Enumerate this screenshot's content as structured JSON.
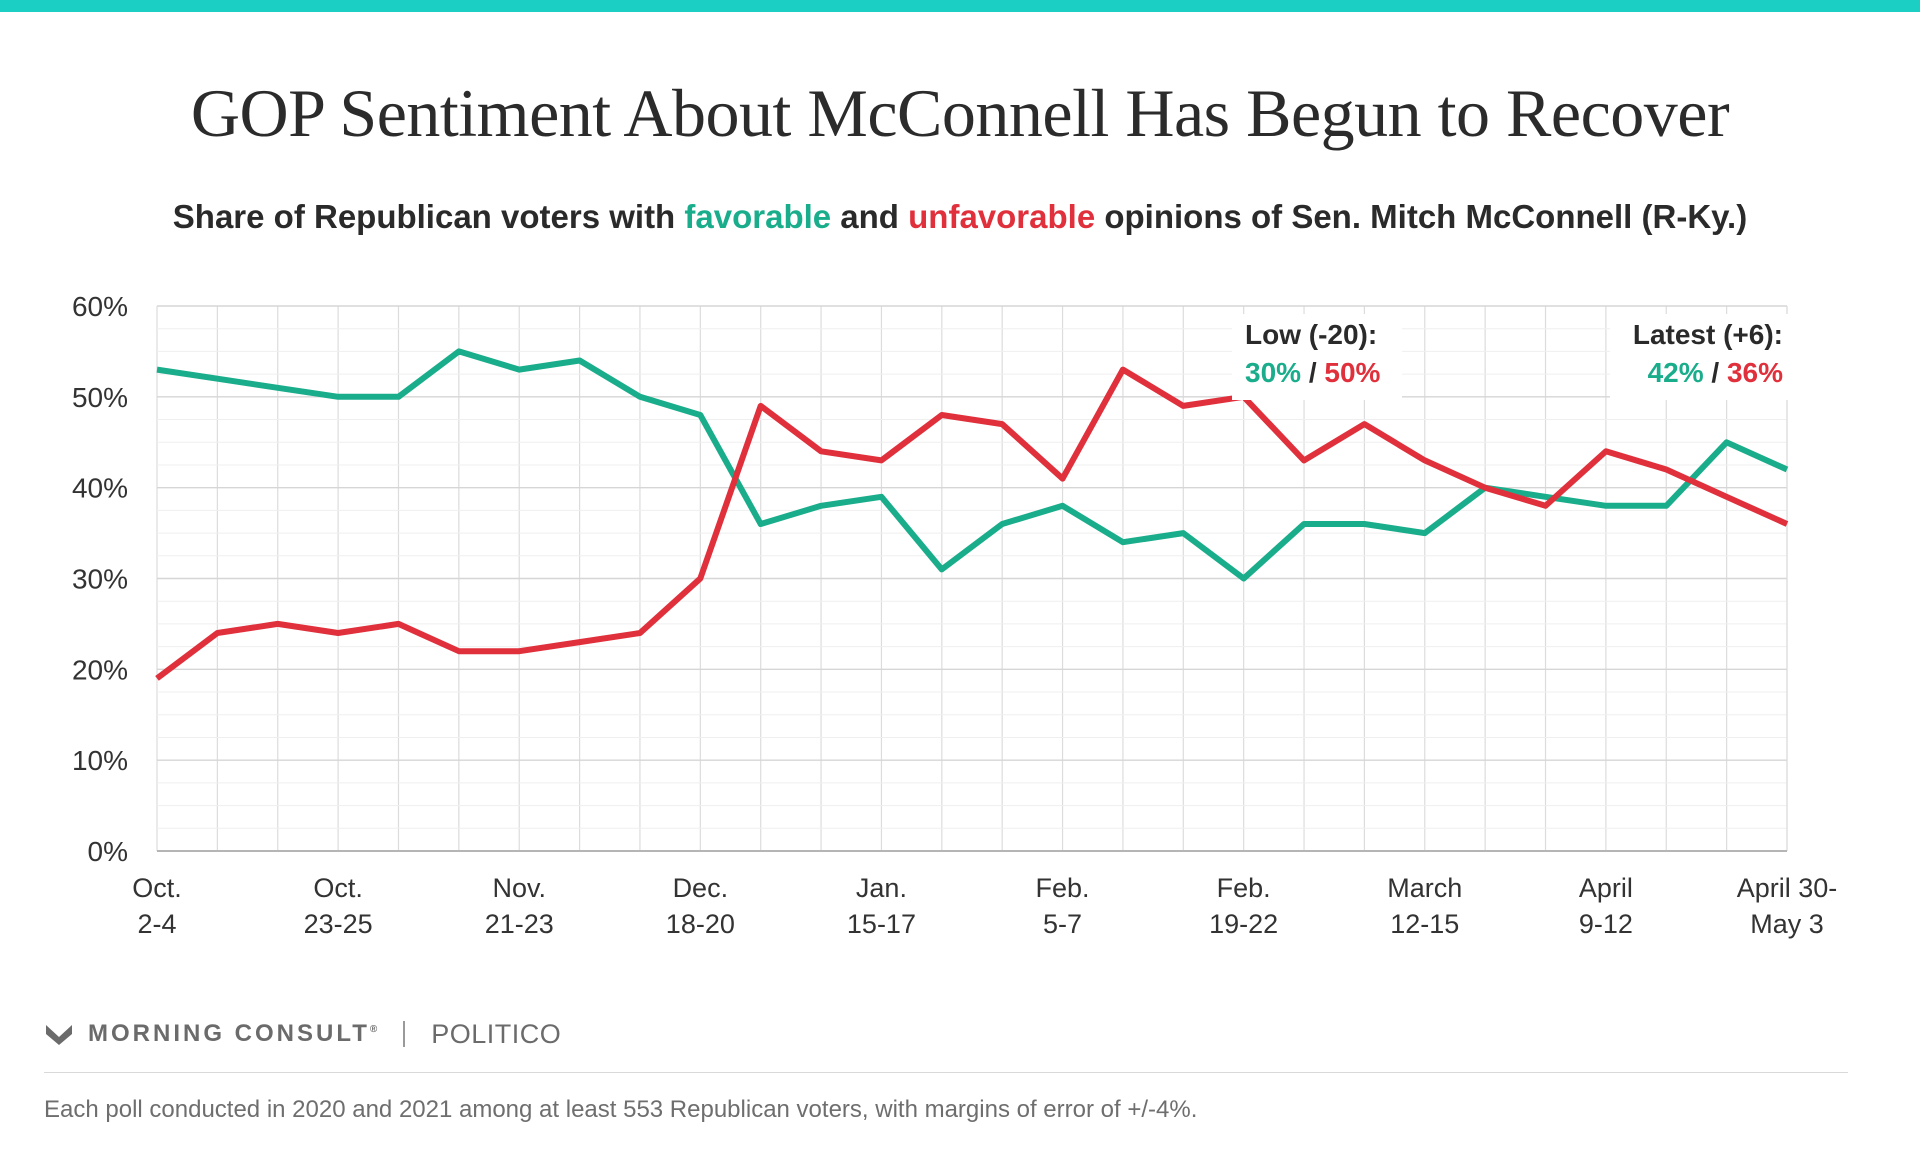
{
  "title": "GOP Sentiment About McConnell Has Begun to Recover",
  "subtitle": {
    "pre": "Share of Republican voters with ",
    "favorable": "favorable",
    "mid": " and ",
    "unfavorable": "unfavorable",
    "post": " opinions of Sen. Mitch McConnell (R-Ky.)"
  },
  "colors": {
    "favorable": "#1aad8b",
    "unfavorable": "#e0303c",
    "accent": "#1ccfc4"
  },
  "chart_data": {
    "type": "line",
    "ylim": [
      0,
      60
    ],
    "y_ticks": [
      0,
      10,
      20,
      30,
      40,
      50,
      60
    ],
    "y_tick_labels": [
      "0%",
      "10%",
      "20%",
      "30%",
      "40%",
      "50%",
      "60%"
    ],
    "grid": true,
    "x_count": 28,
    "x_tick_labels": [
      {
        "index": 0,
        "lines": [
          "Oct.",
          "2-4"
        ]
      },
      {
        "index": 3,
        "lines": [
          "Oct.",
          "23-25"
        ]
      },
      {
        "index": 6,
        "lines": [
          "Nov.",
          "21-23"
        ]
      },
      {
        "index": 9,
        "lines": [
          "Dec.",
          "18-20"
        ]
      },
      {
        "index": 12,
        "lines": [
          "Jan.",
          "15-17"
        ]
      },
      {
        "index": 15,
        "lines": [
          "Feb.",
          "5-7"
        ]
      },
      {
        "index": 18,
        "lines": [
          "Feb.",
          "19-22"
        ]
      },
      {
        "index": 21,
        "lines": [
          "March",
          "12-15"
        ]
      },
      {
        "index": 24,
        "lines": [
          "April",
          "9-12"
        ]
      },
      {
        "index": 27,
        "lines": [
          "April 30-",
          "May 3"
        ]
      }
    ],
    "series": [
      {
        "name": "favorable",
        "color": "#1aad8b",
        "values": [
          53,
          52,
          51,
          50,
          50,
          55,
          53,
          54,
          50,
          48,
          36,
          38,
          39,
          31,
          36,
          38,
          34,
          35,
          30,
          36,
          36,
          35,
          40,
          39,
          38,
          38,
          45,
          42
        ]
      },
      {
        "name": "unfavorable",
        "color": "#e0303c",
        "values": [
          19,
          24,
          25,
          24,
          25,
          22,
          22,
          23,
          24,
          30,
          49,
          44,
          43,
          48,
          47,
          41,
          53,
          49,
          50,
          43,
          47,
          43,
          40,
          38,
          44,
          42,
          39,
          36
        ]
      }
    ],
    "annotations": [
      {
        "title": "Low (-20):",
        "favorable": "30%",
        "sep": " / ",
        "unfavorable": "50%"
      },
      {
        "title": "Latest (+6):",
        "favorable": "42%",
        "sep": " / ",
        "unfavorable": "36%"
      }
    ]
  },
  "brand": {
    "morning_consult": "MORNING CONSULT",
    "registered_mark": "®",
    "politico": "POLITICO"
  },
  "footnote": "Each poll conducted in 2020 and 2021 among at least 553 Republican voters, with margins of error of +/-4%."
}
